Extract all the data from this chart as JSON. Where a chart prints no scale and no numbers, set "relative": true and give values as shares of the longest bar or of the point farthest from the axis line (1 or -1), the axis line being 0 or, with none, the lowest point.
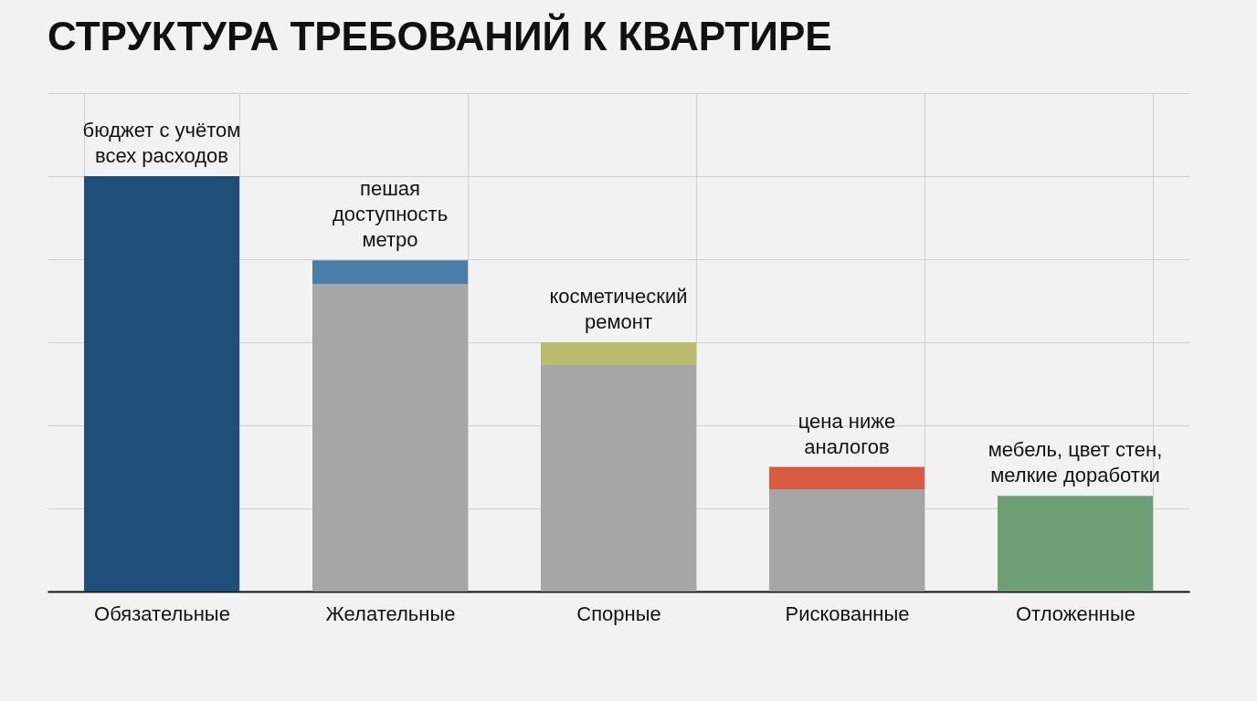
{
  "chart_data": {
    "type": "bar",
    "title": "СТРУКТУРА ТРЕБОВАНИЙ К КВАРТИРЕ",
    "relative": true,
    "stacked": true,
    "grid": true,
    "categories": [
      "Обязательные",
      "Желательные",
      "Спорные",
      "Рискованные",
      "Отложенные"
    ],
    "series": [
      {
        "color": "#a6a6a6",
        "values": [
          null,
          0.74,
          0.545,
          0.246,
          null
        ]
      },
      {
        "colors": [
          "#1f4e79",
          "#4a7ea8",
          "#b9bb6f",
          "#d65b40",
          "#6f9f74"
        ],
        "values": [
          1.0,
          0.057,
          0.055,
          0.054,
          0.23
        ]
      }
    ],
    "annotations": [
      {
        "text": "бюджет с учётом\nвсех расходов",
        "x": "Обязательные",
        "y": 1.0
      },
      {
        "text": "пешая\nдоступность\nметро",
        "x": "Желательные",
        "y": 0.797
      },
      {
        "text": "косметический\nремонт",
        "x": "Спорные",
        "y": 0.6
      },
      {
        "text": "цена ниже\nаналогов",
        "x": "Рискованные",
        "y": 0.3
      },
      {
        "text": "мебель, цвет стен,\nмелкие доработки",
        "x": "Отложенные",
        "y": 0.23
      }
    ]
  }
}
